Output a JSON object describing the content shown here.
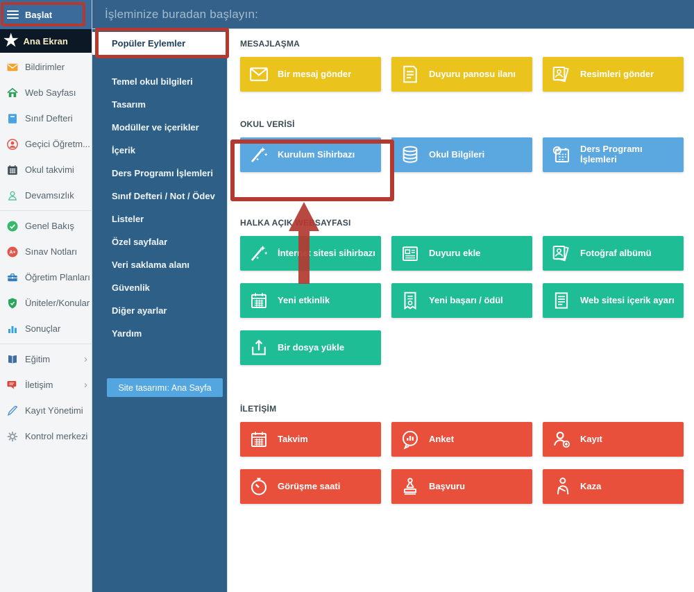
{
  "topbar": {
    "title": "İşleminize buradan başlayın:"
  },
  "sidebar1": {
    "header": {
      "label": "Başlat",
      "icon": "hamburger-icon"
    },
    "home": {
      "label": "Ana Ekran",
      "icon": "star-icon"
    },
    "items": [
      {
        "label": "Bildirimler",
        "icon": "mail-icon",
        "icon_color": "#f2a230"
      },
      {
        "label": "Web Sayfası",
        "icon": "home-icon",
        "icon_color": "#2fa05c"
      },
      {
        "label": "Sınıf Defteri",
        "icon": "notebook-icon",
        "icon_color": "#4aa2e0"
      },
      {
        "label": "Geçici Öğretm...",
        "icon": "person-circle-icon",
        "icon_color": "#e2574c"
      },
      {
        "label": "Okul takvimi",
        "icon": "calendar-grid-icon",
        "icon_color": "#3c4a54"
      },
      {
        "label": "Devamsızlık",
        "icon": "person-outline-icon",
        "icon_color": "#5bc79b",
        "divider_after": true
      },
      {
        "label": "Genel Bakış",
        "icon": "check-circle-icon",
        "icon_color": "#35b96a"
      },
      {
        "label": "Sınav Notları",
        "icon": "grade-icon",
        "icon_color": "#e2574c"
      },
      {
        "label": "Öğretim Planları",
        "icon": "briefcase-icon",
        "icon_color": "#2f7fc0"
      },
      {
        "label": "Üniteler/Konular",
        "icon": "shield-icon",
        "icon_color": "#2ca55d"
      },
      {
        "label": "Sonuçlar",
        "icon": "bar-chart-icon",
        "icon_color": "#36a3de",
        "divider_after": true
      },
      {
        "label": "Eğitim",
        "icon": "book-icon",
        "icon_color": "#3f6d9e",
        "chevron": true
      },
      {
        "label": "İletişim",
        "icon": "chat-icon",
        "icon_color": "#d8453c",
        "chevron": true
      },
      {
        "label": "Kayıt Yönetimi",
        "icon": "pen-icon",
        "icon_color": "#4a90d9"
      },
      {
        "label": "Kontrol merkezi",
        "icon": "gear-icon",
        "icon_color": "#9aa4ab"
      }
    ]
  },
  "sidebar2": {
    "items": [
      "Popüler Eylemler",
      "Temel okul bilgileri",
      "Tasarım",
      "Modüller ve içerikler",
      "İçerik",
      "Ders Programı İşlemleri",
      "Sınıf Defteri / Not / Ödev",
      "Listeler",
      "Özel sayfalar",
      "Veri saklama alanı",
      "Güvenlik",
      "Diğer ayarlar",
      "Yardım"
    ],
    "active_item": "Popüler Eylemler",
    "site_design_button": {
      "label": "Site tasarımı: Ana Sayfa",
      "color": "#54a6e0"
    }
  },
  "sections": [
    {
      "label": "MESAJLAŞMA",
      "color": "#eac31d",
      "buttons": [
        {
          "label": "Bir mesaj gönder",
          "icon": "envelope-icon"
        },
        {
          "label": "Duyuru panosu ilanı",
          "icon": "note-icon"
        },
        {
          "label": "Resimleri gönder",
          "icon": "photos-icon"
        }
      ]
    },
    {
      "label": "OKUL VERİSİ",
      "color": "#5ba7e0",
      "buttons": [
        {
          "label": "Kurulum Sihirbazı",
          "icon": "wand-icon"
        },
        {
          "label": "Okul Bilgileri",
          "icon": "database-icon"
        },
        {
          "label": "Ders Programı İşlemleri",
          "icon": "schedule-icon"
        }
      ]
    },
    {
      "label": "HALKA AÇIK WEBSAYFASI",
      "color": "#1fbd95",
      "buttons": [
        {
          "label": "İnternet sitesi sihirbazı",
          "icon": "wand-icon"
        },
        {
          "label": "Duyuru ekle",
          "icon": "newspaper-icon"
        },
        {
          "label": "Fotoğraf albümü",
          "icon": "photos-icon"
        },
        {
          "label": "Yeni etkinlik",
          "icon": "calendar-icon"
        },
        {
          "label": "Yeni başarı / ödül",
          "icon": "award-icon"
        },
        {
          "label": "Web sitesi içerik ayarı",
          "icon": "document-icon"
        },
        {
          "label": "Bir dosya yükle",
          "icon": "upload-icon"
        }
      ]
    },
    {
      "label": "İLETİŞİM",
      "color": "#e8503c",
      "buttons": [
        {
          "label": "Takvim",
          "icon": "calendar-icon"
        },
        {
          "label": "Anket",
          "icon": "poll-icon"
        },
        {
          "label": "Kayıt",
          "icon": "person-add-icon"
        },
        {
          "label": "Görüşme saati",
          "icon": "stopwatch-icon"
        },
        {
          "label": "Başvuru",
          "icon": "stamp-icon"
        },
        {
          "label": "Kaza",
          "icon": "injury-icon"
        }
      ]
    }
  ],
  "annotations": {
    "color": "#b23a31"
  }
}
